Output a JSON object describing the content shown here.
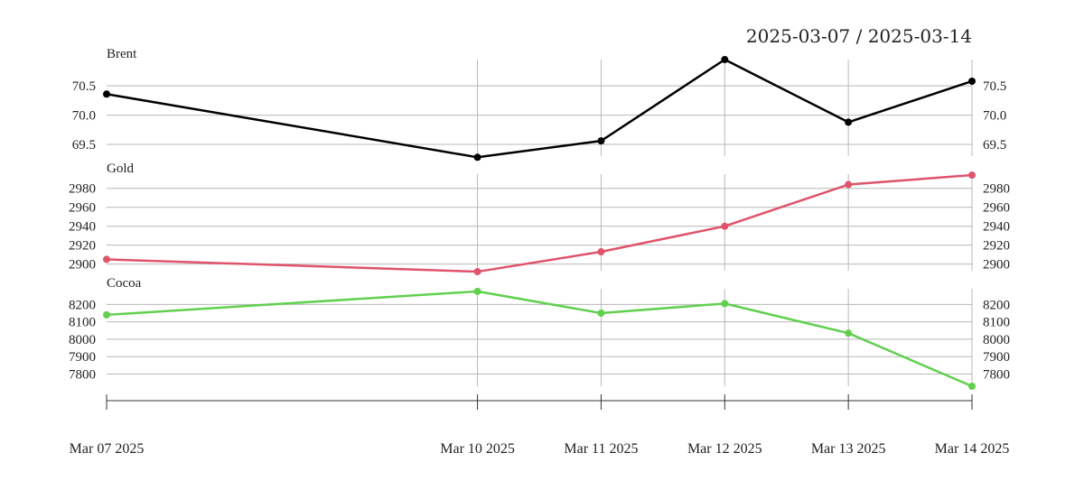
{
  "header": {
    "date_range": "2025-03-07 / 2025-03-14"
  },
  "chart_data": {
    "type": "line",
    "x": [
      "Mar 07 2025",
      "Mar 10 2025",
      "Mar 11 2025",
      "Mar 12 2025",
      "Mar 13 2025",
      "Mar 14 2025"
    ],
    "x_dates": [
      "2025-03-07",
      "2025-03-10",
      "2025-03-11",
      "2025-03-12",
      "2025-03-13",
      "2025-03-14"
    ],
    "panels": [
      {
        "name": "Brent",
        "color": "#000000",
        "values": [
          70.36,
          69.28,
          69.56,
          70.95,
          69.88,
          70.58
        ],
        "ylim": [
          69.3,
          70.95
        ],
        "yticks": [
          69.5,
          70.0,
          70.5
        ],
        "ytick_labels": [
          "69.5",
          "70.0",
          "70.5"
        ]
      },
      {
        "name": "Gold",
        "color": "#df536b",
        "values": [
          2905,
          2892,
          2913,
          2940,
          2984,
          2994
        ],
        "ylim": [
          2893,
          2995
        ],
        "yticks": [
          2900,
          2920,
          2940,
          2960,
          2980
        ],
        "ytick_labels": [
          "2900",
          "2920",
          "2940",
          "2960",
          "2980"
        ]
      },
      {
        "name": "Cocoa",
        "color": "#61d04f",
        "values": [
          8140,
          8275,
          8150,
          8205,
          8035,
          7730
        ],
        "ylim": [
          7730,
          8290
        ],
        "yticks": [
          7800,
          7900,
          8000,
          8100,
          8200
        ],
        "ytick_labels": [
          "7800",
          "7900",
          "8000",
          "8100",
          "8200"
        ]
      }
    ],
    "grid": true
  }
}
